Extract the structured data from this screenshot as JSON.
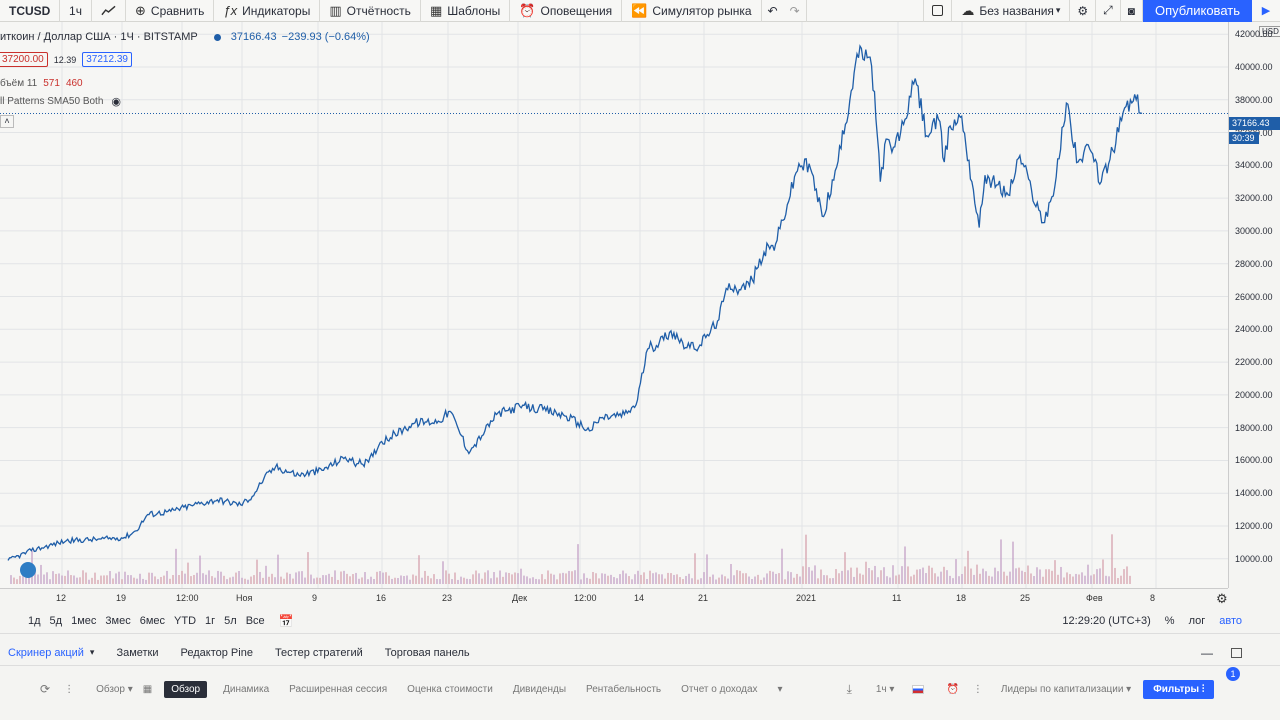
{
  "toolbar": {
    "symbol": "TCUSD",
    "interval": "1ч",
    "compare": "Сравнить",
    "indicators": "Индикаторы",
    "reports": "Отчётность",
    "templates": "Шаблоны",
    "alerts": "Оповещения",
    "replay": "Симулятор рынка",
    "layout_name": "Без названия",
    "publish": "Опубликовать"
  },
  "legend": {
    "title": "иткоин / Доллар США · 1Ч · BITSTAMP",
    "last": "37166.43",
    "change": "−239.93 (−0.64%)",
    "bid": "37200.00",
    "spread": "12.39",
    "ask": "37212.39",
    "volume_label": "бъём 11",
    "volume_a": "571",
    "volume_b": "460",
    "study": "ll Patterns SMA50 Both"
  },
  "colors": {
    "line": "#1f5ea8",
    "price_tag": "#1f5ea8",
    "accent": "#2962ff",
    "volume_up": "#d9a8b2",
    "volume_down": "#c8a6c9"
  },
  "chart_data": {
    "type": "line",
    "currency": "USD",
    "ylim": [
      9500,
      42500
    ],
    "y_ticks": [
      10000,
      12000,
      14000,
      16000,
      18000,
      20000,
      22000,
      24000,
      26000,
      28000,
      30000,
      32000,
      34000,
      36000,
      38000,
      40000,
      42000
    ],
    "x_ticks": [
      "12",
      "19",
      "12:00",
      "Ноя",
      "9",
      "16",
      "23",
      "Дек",
      "12:00",
      "14",
      "21",
      "2021",
      "11",
      "18",
      "25",
      "Фев",
      "8"
    ],
    "series": [
      {
        "points": [
          [
            0,
            9900
          ],
          [
            2,
            10500
          ],
          [
            5,
            11100
          ],
          [
            8,
            11200
          ],
          [
            10,
            11300
          ],
          [
            11,
            11700
          ],
          [
            12,
            12700
          ],
          [
            14,
            12900
          ],
          [
            16,
            13300
          ],
          [
            18,
            13600
          ],
          [
            20,
            13300
          ],
          [
            21,
            13800
          ],
          [
            22,
            14900
          ],
          [
            23,
            15600
          ],
          [
            25,
            15100
          ],
          [
            27,
            15400
          ],
          [
            29,
            16200
          ],
          [
            30,
            15800
          ],
          [
            31,
            15900
          ],
          [
            32,
            17100
          ],
          [
            34,
            17900
          ],
          [
            35,
            18300
          ],
          [
            37,
            18400
          ],
          [
            38,
            19000
          ],
          [
            39,
            17500
          ],
          [
            39.5,
            16600
          ],
          [
            40,
            16800
          ],
          [
            41,
            17800
          ],
          [
            42,
            18800
          ],
          [
            44,
            19300
          ],
          [
            46,
            19100
          ],
          [
            48,
            18700
          ],
          [
            49,
            18300
          ],
          [
            50,
            17800
          ],
          [
            51,
            18600
          ],
          [
            53,
            18800
          ],
          [
            54,
            19400
          ],
          [
            55,
            22800
          ],
          [
            56,
            23200
          ],
          [
            57,
            23900
          ],
          [
            58,
            23200
          ],
          [
            59,
            22800
          ],
          [
            60,
            23500
          ],
          [
            61,
            24500
          ],
          [
            62,
            26800
          ],
          [
            63,
            26400
          ],
          [
            64,
            27000
          ],
          [
            65,
            28700
          ],
          [
            66,
            29200
          ],
          [
            67,
            31600
          ],
          [
            68,
            34100
          ],
          [
            69,
            33800
          ],
          [
            70,
            30900
          ],
          [
            71,
            33100
          ],
          [
            72,
            36500
          ],
          [
            73,
            40800
          ],
          [
            74,
            40600
          ],
          [
            74.5,
            38500
          ],
          [
            75,
            33000
          ],
          [
            75.5,
            35600
          ],
          [
            76,
            34800
          ],
          [
            77,
            36500
          ],
          [
            78,
            39300
          ],
          [
            79,
            35800
          ],
          [
            80,
            36800
          ],
          [
            80.5,
            34200
          ],
          [
            81,
            36400
          ],
          [
            82,
            37000
          ],
          [
            83,
            32500
          ],
          [
            83.5,
            30200
          ],
          [
            84,
            33400
          ],
          [
            85,
            32800
          ],
          [
            86,
            32200
          ],
          [
            87,
            34600
          ],
          [
            88,
            32500
          ],
          [
            89,
            30500
          ],
          [
            90,
            32700
          ],
          [
            91,
            37800
          ],
          [
            92,
            34200
          ],
          [
            93,
            35000
          ],
          [
            94,
            33000
          ],
          [
            95,
            34900
          ],
          [
            96,
            37500
          ],
          [
            97,
            38000
          ],
          [
            97.5,
            37166
          ]
        ]
      }
    ]
  },
  "price_axis": {
    "last_tag": "37166.43",
    "countdown": "30:39"
  },
  "range_bar": {
    "ranges": [
      "1д",
      "5д",
      "1мес",
      "3мес",
      "6мес",
      "YTD",
      "1г",
      "5л",
      "Все"
    ],
    "time": "12:29:20 (UTC+3)",
    "percent": "%",
    "log": "лог",
    "auto": "авто"
  },
  "panel_tabs": [
    "Скринер акций",
    "Заметки",
    "Редактор Pine",
    "Тестер стратегий",
    "Торговая панель"
  ],
  "screener": {
    "overview_select": "Обзор",
    "tabs": [
      "Обзор",
      "Динамика",
      "Расширенная сессия",
      "Оценка стоимости",
      "Дивиденды",
      "Рентабельность",
      "Отчет о доходах"
    ],
    "interval": "1ч",
    "sort": "Лидеры по капитализации",
    "filters": "Фильтры",
    "badge": "1"
  }
}
